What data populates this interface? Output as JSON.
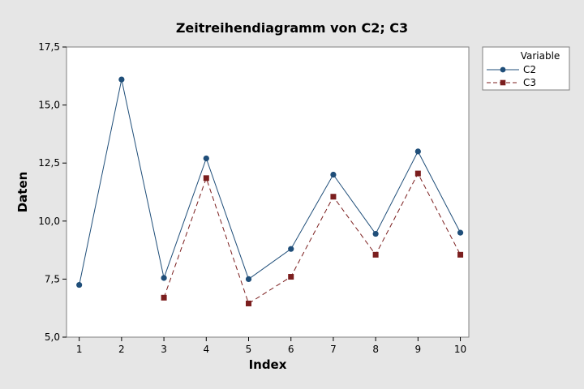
{
  "chart_data": {
    "type": "line",
    "title": "Zeitreihendiagramm von C2; C3",
    "xlabel": "Index",
    "ylabel": "Daten",
    "x": [
      1,
      2,
      3,
      4,
      5,
      6,
      7,
      8,
      9,
      10
    ],
    "x_tick_labels": [
      "1",
      "2",
      "3",
      "4",
      "5",
      "6",
      "7",
      "8",
      "9",
      "10"
    ],
    "xlim": [
      0.7,
      10.2
    ],
    "ylim": [
      5.0,
      17.5
    ],
    "y_ticks": [
      5.0,
      7.5,
      10.0,
      12.5,
      15.0,
      17.5
    ],
    "y_tick_labels": [
      "5,0",
      "7,5",
      "10,0",
      "12,5",
      "15,0",
      "17,5"
    ],
    "grid": false,
    "legend": {
      "title": "Variable",
      "position": "top-right-outside"
    },
    "series": [
      {
        "name": "C2",
        "values": [
          7.25,
          16.1,
          7.55,
          12.7,
          7.5,
          8.8,
          12.0,
          9.45,
          13.0,
          9.5
        ],
        "color": "#1f4e79",
        "marker": "circle",
        "line_style": "solid"
      },
      {
        "name": "C3",
        "values": [
          null,
          null,
          6.7,
          11.85,
          6.45,
          7.6,
          11.05,
          8.55,
          12.05,
          8.55
        ],
        "color": "#7b1e1e",
        "marker": "square",
        "line_style": "dashed"
      }
    ]
  }
}
